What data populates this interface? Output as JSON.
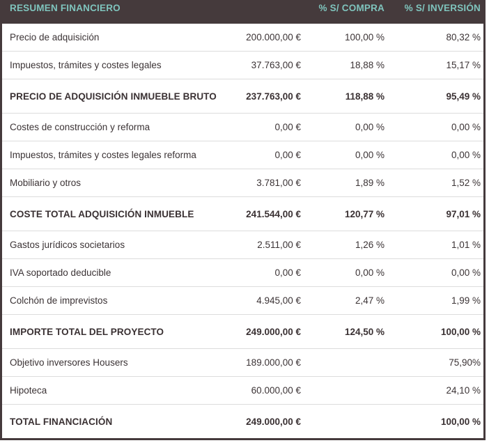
{
  "table": {
    "title": "RESUMEN FINANCIERO",
    "columns": {
      "label": "RESUMEN FINANCIERO",
      "amount": "",
      "pct_compra": "% S/ COMPRA",
      "pct_inversion": "% S/ INVERSIÓN"
    },
    "colors": {
      "header_bg": "#453a3c",
      "header_text": "#7fc4bd",
      "border": "#453a3c",
      "divider": "#dcdcdc",
      "text": "#3b3335"
    },
    "rows": [
      {
        "label": "Precio de adquisición",
        "amount": "200.000,00 €",
        "pct_compra": "100,00 %",
        "pct_inversion": "80,32 %",
        "bold": false
      },
      {
        "label": "Impuestos, trámites y costes legales",
        "amount": "37.763,00 €",
        "pct_compra": "18,88 %",
        "pct_inversion": "15,17 %",
        "bold": false
      },
      {
        "label": "PRECIO DE ADQUISICIÓN INMUEBLE BRUTO",
        "amount": "237.763,00 €",
        "pct_compra": "118,88 %",
        "pct_inversion": "95,49 %",
        "bold": true
      },
      {
        "label": "Costes de construcción y reforma",
        "amount": "0,00 €",
        "pct_compra": "0,00 %",
        "pct_inversion": "0,00 %",
        "bold": false
      },
      {
        "label": "Impuestos, trámites y costes legales reforma",
        "amount": "0,00 €",
        "pct_compra": "0,00 %",
        "pct_inversion": "0,00 %",
        "bold": false
      },
      {
        "label": "Mobiliario y otros",
        "amount": "3.781,00 €",
        "pct_compra": "1,89 %",
        "pct_inversion": "1,52 %",
        "bold": false
      },
      {
        "label": "COSTE TOTAL ADQUISICIÓN INMUEBLE",
        "amount": "241.544,00 €",
        "pct_compra": "120,77 %",
        "pct_inversion": "97,01 %",
        "bold": true
      },
      {
        "label": "Gastos jurídicos societarios",
        "amount": "2.511,00 €",
        "pct_compra": "1,26 %",
        "pct_inversion": "1,01 %",
        "bold": false
      },
      {
        "label": "IVA soportado deducible",
        "amount": "0,00 €",
        "pct_compra": "0,00 %",
        "pct_inversion": "0,00 %",
        "bold": false
      },
      {
        "label": "Colchón de imprevistos",
        "amount": "4.945,00 €",
        "pct_compra": "2,47 %",
        "pct_inversion": "1,99 %",
        "bold": false
      },
      {
        "label": "IMPORTE TOTAL DEL PROYECTO",
        "amount": "249.000,00 €",
        "pct_compra": "124,50 %",
        "pct_inversion": "100,00 %",
        "bold": true
      },
      {
        "label": "Objetivo inversores Housers",
        "amount": "189.000,00 €",
        "pct_compra": "",
        "pct_inversion": "75,90%",
        "bold": false
      },
      {
        "label": "Hipoteca",
        "amount": "60.000,00 €",
        "pct_compra": "",
        "pct_inversion": "24,10 %",
        "bold": false
      },
      {
        "label": "TOTAL FINANCIACIÓN",
        "amount": "249.000,00 €",
        "pct_compra": "",
        "pct_inversion": "100,00 %",
        "bold": true
      }
    ]
  }
}
